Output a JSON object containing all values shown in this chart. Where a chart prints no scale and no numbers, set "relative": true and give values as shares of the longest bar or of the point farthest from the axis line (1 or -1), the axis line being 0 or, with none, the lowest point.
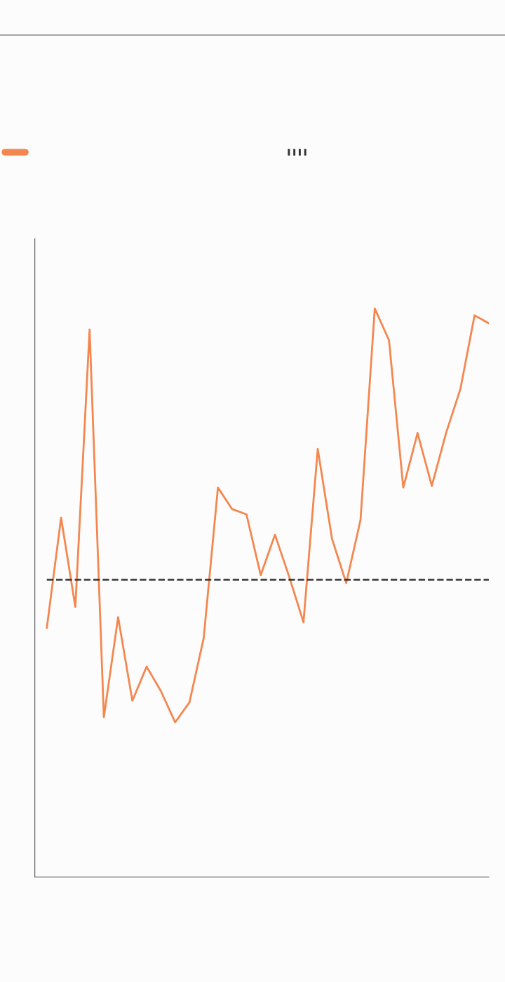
{
  "chart_data": {
    "type": "line",
    "relative": true,
    "categories": [
      null,
      null,
      null,
      null,
      null,
      null,
      null,
      null,
      null,
      null,
      null,
      null,
      null,
      null,
      null,
      null,
      null,
      null,
      null,
      null,
      null,
      null,
      null,
      null,
      null,
      null,
      null,
      null,
      null,
      null,
      null,
      null
    ],
    "series": [
      {
        "color": "#f4874f",
        "values": [
          0.438,
          0.632,
          0.475,
          0.963,
          0.281,
          0.457,
          0.31,
          0.37,
          0.327,
          0.272,
          0.307,
          0.42,
          0.685,
          0.647,
          0.638,
          0.531,
          0.602,
          0.528,
          0.448,
          0.753,
          0.595,
          0.517,
          0.628,
          1.0,
          0.944,
          0.685,
          0.781,
          0.688,
          0.781,
          0.858,
          0.988,
          0.974
        ]
      }
    ],
    "ref_lines": [
      {
        "axis": "y",
        "value": 0.523,
        "color": "#333333",
        "line_style": "dashed"
      }
    ],
    "line_style": "solid",
    "marker": "none"
  }
}
